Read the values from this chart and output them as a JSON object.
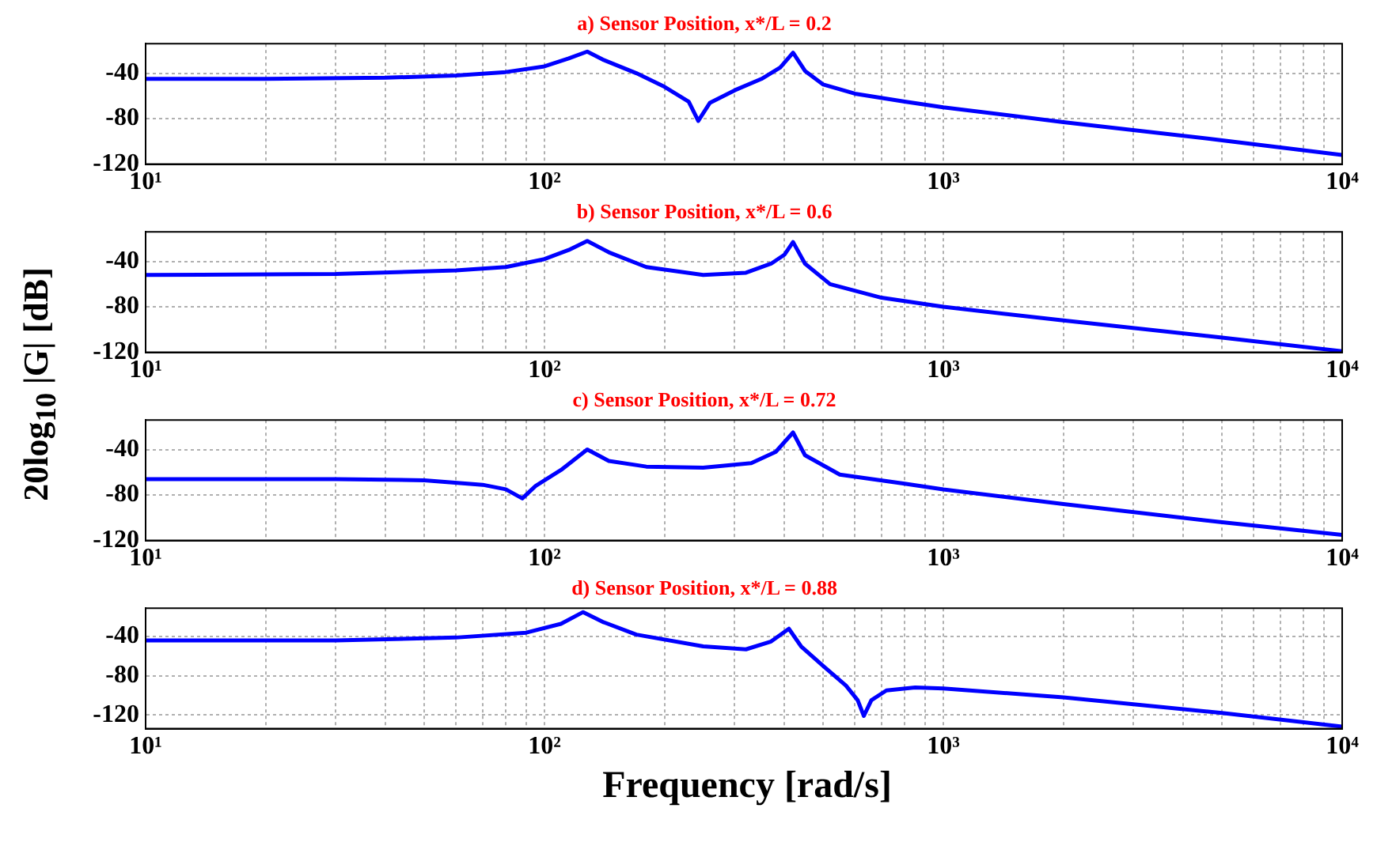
{
  "chart_data": [
    {
      "type": "line",
      "title": "a) Sensor Position, x*/L = 0.2",
      "ylabel": "20log$_{10}$ |G| [dB]",
      "log": "x",
      "grid": true,
      "xlim": [
        10,
        10000
      ],
      "ylim": [
        -120,
        -14
      ],
      "yticks": [
        -40,
        -80,
        -120
      ],
      "xticks": [
        {
          "value": 10,
          "label": "10¹"
        },
        {
          "value": 20,
          "label": null
        },
        {
          "value": 30,
          "label": null
        },
        {
          "value": 40,
          "label": null
        },
        {
          "value": 50,
          "label": null
        },
        {
          "value": 60,
          "label": null
        },
        {
          "value": 70,
          "label": null
        },
        {
          "value": 80,
          "label": null
        },
        {
          "value": 90,
          "label": null
        },
        {
          "value": 100,
          "label": "10²"
        },
        {
          "value": 200,
          "label": null
        },
        {
          "value": 300,
          "label": null
        },
        {
          "value": 400,
          "label": null
        },
        {
          "value": 500,
          "label": null
        },
        {
          "value": 600,
          "label": null
        },
        {
          "value": 700,
          "label": null
        },
        {
          "value": 800,
          "label": null
        },
        {
          "value": 900,
          "label": null
        },
        {
          "value": 1000,
          "label": "10³"
        },
        {
          "value": 2000,
          "label": null
        },
        {
          "value": 3000,
          "label": null
        },
        {
          "value": 4000,
          "label": null
        },
        {
          "value": 5000,
          "label": null
        },
        {
          "value": 6000,
          "label": null
        },
        {
          "value": 7000,
          "label": null
        },
        {
          "value": 8000,
          "label": null
        },
        {
          "value": 9000,
          "label": null
        },
        {
          "value": 10000,
          "label": "10⁴"
        }
      ],
      "series": [
        {
          "color": "#0000ff",
          "x": [
            10,
            20,
            40,
            60,
            80,
            100,
            115,
            128,
            140,
            170,
            200,
            230,
            243,
            260,
            300,
            350,
            390,
            420,
            450,
            500,
            600,
            800,
            1000,
            2000,
            5000,
            10000
          ],
          "values": [
            -45,
            -45,
            -44,
            -42,
            -39,
            -34,
            -27,
            -21,
            -28,
            -40,
            -52,
            -65,
            -82,
            -66,
            -55,
            -45,
            -35,
            -22,
            -38,
            -50,
            -58,
            -65,
            -70,
            -83,
            -99,
            -112
          ]
        }
      ]
    },
    {
      "type": "line",
      "title": "b) Sensor Position, x*/L = 0.6",
      "log": "x",
      "grid": true,
      "xlim": [
        10,
        10000
      ],
      "ylim": [
        -120,
        -14
      ],
      "yticks": [
        -40,
        -80,
        -120
      ],
      "xticks": [
        {
          "value": 10,
          "label": "10¹"
        },
        {
          "value": 20,
          "label": null
        },
        {
          "value": 30,
          "label": null
        },
        {
          "value": 40,
          "label": null
        },
        {
          "value": 50,
          "label": null
        },
        {
          "value": 60,
          "label": null
        },
        {
          "value": 70,
          "label": null
        },
        {
          "value": 80,
          "label": null
        },
        {
          "value": 90,
          "label": null
        },
        {
          "value": 100,
          "label": "10²"
        },
        {
          "value": 200,
          "label": null
        },
        {
          "value": 300,
          "label": null
        },
        {
          "value": 400,
          "label": null
        },
        {
          "value": 500,
          "label": null
        },
        {
          "value": 600,
          "label": null
        },
        {
          "value": 700,
          "label": null
        },
        {
          "value": 800,
          "label": null
        },
        {
          "value": 900,
          "label": null
        },
        {
          "value": 1000,
          "label": "10³"
        },
        {
          "value": 2000,
          "label": null
        },
        {
          "value": 3000,
          "label": null
        },
        {
          "value": 4000,
          "label": null
        },
        {
          "value": 5000,
          "label": null
        },
        {
          "value": 6000,
          "label": null
        },
        {
          "value": 7000,
          "label": null
        },
        {
          "value": 8000,
          "label": null
        },
        {
          "value": 9000,
          "label": null
        },
        {
          "value": 10000,
          "label": "10⁴"
        }
      ],
      "series": [
        {
          "color": "#0000ff",
          "x": [
            10,
            30,
            60,
            80,
            100,
            115,
            128,
            145,
            180,
            250,
            320,
            370,
            400,
            420,
            450,
            520,
            700,
            1000,
            2000,
            5000,
            10000
          ],
          "values": [
            -52,
            -51,
            -48,
            -45,
            -38,
            -30,
            -22,
            -32,
            -45,
            -52,
            -50,
            -42,
            -34,
            -23,
            -42,
            -60,
            -72,
            -80,
            -92,
            -107,
            -119
          ]
        }
      ]
    },
    {
      "type": "line",
      "title": "c) Sensor Position, x*/L = 0.72",
      "log": "x",
      "grid": true,
      "xlim": [
        10,
        10000
      ],
      "ylim": [
        -120,
        -14
      ],
      "yticks": [
        -40,
        -80,
        -120
      ],
      "xticks": [
        {
          "value": 10,
          "label": "10¹"
        },
        {
          "value": 20,
          "label": null
        },
        {
          "value": 30,
          "label": null
        },
        {
          "value": 40,
          "label": null
        },
        {
          "value": 50,
          "label": null
        },
        {
          "value": 60,
          "label": null
        },
        {
          "value": 70,
          "label": null
        },
        {
          "value": 80,
          "label": null
        },
        {
          "value": 90,
          "label": null
        },
        {
          "value": 100,
          "label": "10²"
        },
        {
          "value": 200,
          "label": null
        },
        {
          "value": 300,
          "label": null
        },
        {
          "value": 400,
          "label": null
        },
        {
          "value": 500,
          "label": null
        },
        {
          "value": 600,
          "label": null
        },
        {
          "value": 700,
          "label": null
        },
        {
          "value": 800,
          "label": null
        },
        {
          "value": 900,
          "label": null
        },
        {
          "value": 1000,
          "label": "10³"
        },
        {
          "value": 2000,
          "label": null
        },
        {
          "value": 3000,
          "label": null
        },
        {
          "value": 4000,
          "label": null
        },
        {
          "value": 5000,
          "label": null
        },
        {
          "value": 6000,
          "label": null
        },
        {
          "value": 7000,
          "label": null
        },
        {
          "value": 8000,
          "label": null
        },
        {
          "value": 9000,
          "label": null
        },
        {
          "value": 10000,
          "label": "10⁴"
        }
      ],
      "series": [
        {
          "color": "#0000ff",
          "x": [
            10,
            30,
            50,
            70,
            80,
            88,
            95,
            110,
            128,
            145,
            180,
            250,
            330,
            380,
            420,
            450,
            550,
            800,
            1000,
            2000,
            5000,
            10000
          ],
          "values": [
            -66,
            -66,
            -67,
            -71,
            -75,
            -83,
            -72,
            -58,
            -40,
            -50,
            -55,
            -56,
            -52,
            -42,
            -25,
            -45,
            -62,
            -70,
            -75,
            -88,
            -104,
            -115
          ]
        }
      ]
    },
    {
      "type": "line",
      "title": "d) Sensor Position, x*/L = 0.88",
      "xlabel": "Frequency [rad/s]",
      "log": "x",
      "grid": true,
      "xlim": [
        10,
        10000
      ],
      "ylim": [
        -134,
        -11
      ],
      "yticks": [
        -40,
        -80,
        -120
      ],
      "xticks": [
        {
          "value": 10,
          "label": "10¹"
        },
        {
          "value": 20,
          "label": null
        },
        {
          "value": 30,
          "label": null
        },
        {
          "value": 40,
          "label": null
        },
        {
          "value": 50,
          "label": null
        },
        {
          "value": 60,
          "label": null
        },
        {
          "value": 70,
          "label": null
        },
        {
          "value": 80,
          "label": null
        },
        {
          "value": 90,
          "label": null
        },
        {
          "value": 100,
          "label": "10²"
        },
        {
          "value": 200,
          "label": null
        },
        {
          "value": 300,
          "label": null
        },
        {
          "value": 400,
          "label": null
        },
        {
          "value": 500,
          "label": null
        },
        {
          "value": 600,
          "label": null
        },
        {
          "value": 700,
          "label": null
        },
        {
          "value": 800,
          "label": null
        },
        {
          "value": 900,
          "label": null
        },
        {
          "value": 1000,
          "label": "10³"
        },
        {
          "value": 2000,
          "label": null
        },
        {
          "value": 3000,
          "label": null
        },
        {
          "value": 4000,
          "label": null
        },
        {
          "value": 5000,
          "label": null
        },
        {
          "value": 6000,
          "label": null
        },
        {
          "value": 7000,
          "label": null
        },
        {
          "value": 8000,
          "label": null
        },
        {
          "value": 9000,
          "label": null
        },
        {
          "value": 10000,
          "label": "10⁴"
        }
      ],
      "series": [
        {
          "color": "#0000ff",
          "x": [
            10,
            30,
            60,
            90,
            110,
            125,
            140,
            170,
            250,
            320,
            370,
            410,
            440,
            500,
            570,
            610,
            632,
            660,
            720,
            850,
            1000,
            2000,
            5000,
            10000
          ],
          "values": [
            -44,
            -44,
            -41,
            -36,
            -27,
            -15,
            -25,
            -38,
            -50,
            -53,
            -45,
            -32,
            -50,
            -70,
            -90,
            -105,
            -121,
            -105,
            -95,
            -92,
            -93,
            -102,
            -118,
            -132
          ]
        }
      ]
    }
  ]
}
